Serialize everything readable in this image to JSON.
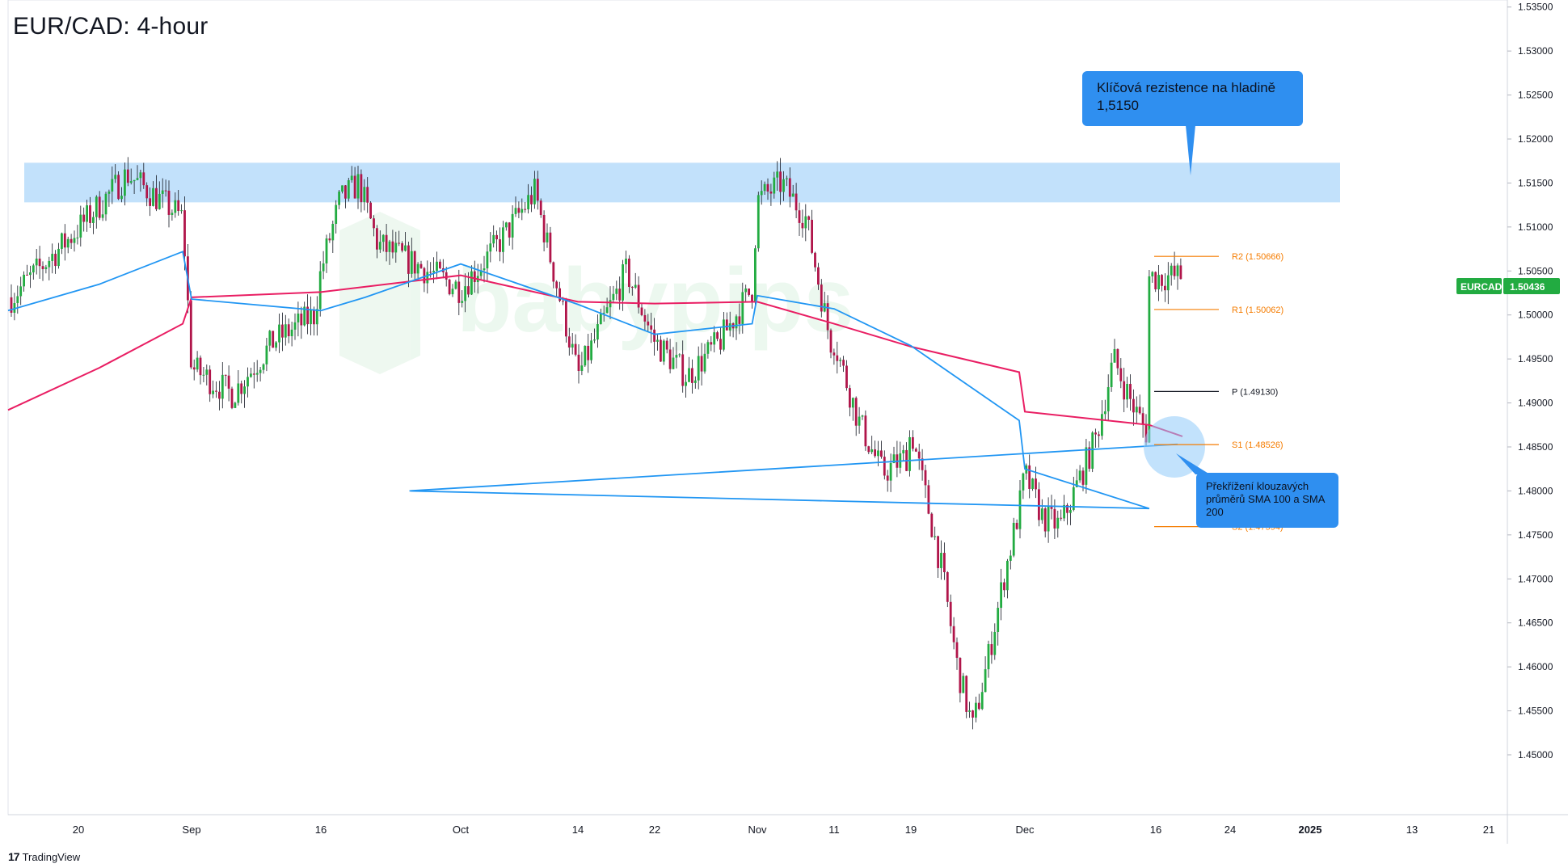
{
  "title": "EUR/CAD: 4-hour",
  "branding": "TradingView",
  "watermark": "babypips",
  "price_tag": {
    "symbol": "EURCAD",
    "value": "1.50436",
    "color": "#22ab41"
  },
  "callouts": {
    "resistance": "Klíčová rezistence na hladině 1,5150",
    "crossover": "Překřížení klouzavých průměrů SMA 100 a SMA 200"
  },
  "colors": {
    "bull": "#22ab41",
    "bear": "#b0154a",
    "sma100": "#2196f3",
    "sma200": "#e91e63",
    "zone": "#bbdefb",
    "pivot_orange": "#f57c00",
    "callout": "#2f8ff0"
  },
  "chart_data": {
    "type": "candlestick",
    "title": "EUR/CAD: 4-hour",
    "x_ticks": [
      "20",
      "Sep",
      "16",
      "Oct",
      "14",
      "22",
      "Nov",
      "11",
      "19",
      "Dec",
      "16",
      "24",
      "2025",
      "13",
      "21"
    ],
    "y_ticks": [
      "1.45000",
      "1.45500",
      "1.46000",
      "1.46500",
      "1.47000",
      "1.47500",
      "1.48000",
      "1.48500",
      "1.49000",
      "1.49500",
      "1.50000",
      "1.50500",
      "1.51000",
      "1.51500",
      "1.52000",
      "1.52500",
      "1.53000",
      "1.53500"
    ],
    "ylim": [
      1.4432,
      1.5358
    ],
    "resistance_zone": {
      "low": 1.5128,
      "high": 1.5173
    },
    "pivot_levels": [
      {
        "label": "R2 (1.50666)",
        "value": 1.50666,
        "color": "#f57c00"
      },
      {
        "label": "R1 (1.50062)",
        "value": 1.50062,
        "color": "#f57c00"
      },
      {
        "label": "P (1.49130)",
        "value": 1.4913,
        "color": "#131722"
      },
      {
        "label": "S1 (1.48526)",
        "value": 1.48526,
        "color": "#f57c00"
      },
      {
        "label": "S2 (1.47594)",
        "value": 1.47594,
        "color": "#f57c00"
      }
    ],
    "price_path": [
      [
        "20",
        1.502
      ],
      [
        "20",
        1.509
      ],
      [
        "20",
        1.516
      ],
      [
        "20",
        1.511
      ],
      [
        "Sep",
        1.494
      ],
      [
        "Sep",
        1.491
      ],
      [
        "Sep",
        1.497
      ],
      [
        "Sep",
        1.5
      ],
      [
        "16",
        1.505
      ],
      [
        "16",
        1.513
      ],
      [
        "16",
        1.515
      ],
      [
        "16",
        1.508
      ],
      [
        "Oct",
        1.503
      ],
      [
        "Oct",
        1.508
      ],
      [
        "Oct",
        1.514
      ],
      [
        "Oct",
        1.496
      ],
      [
        "14",
        1.493
      ],
      [
        "14",
        1.499
      ],
      [
        "14",
        1.505
      ],
      [
        "14",
        1.498
      ],
      [
        "22",
        1.497
      ],
      [
        "22",
        1.493
      ],
      [
        "22",
        1.497
      ],
      [
        "22",
        1.503
      ],
      [
        "Nov",
        1.513
      ],
      [
        "Nov",
        1.515
      ],
      [
        "Nov",
        1.511
      ],
      [
        "Nov",
        1.497
      ],
      [
        "11",
        1.497
      ],
      [
        "11",
        1.488
      ],
      [
        "11",
        1.482
      ],
      [
        "11",
        1.484
      ],
      [
        "19",
        1.487
      ],
      [
        "19",
        1.479
      ],
      [
        "19",
        1.471
      ],
      [
        "19",
        1.46
      ],
      [
        "19",
        1.453
      ],
      [
        "19",
        1.461
      ],
      [
        "19",
        1.47
      ],
      [
        "19",
        1.478
      ],
      [
        "Dec",
        1.482
      ],
      [
        "Dec",
        1.477
      ],
      [
        "Dec",
        1.476
      ],
      [
        "Dec",
        1.481
      ],
      [
        "Dec",
        1.486
      ],
      [
        "Dec",
        1.495
      ],
      [
        "Dec",
        1.49
      ],
      [
        "Dec",
        1.486
      ],
      [
        "16",
        1.493
      ],
      [
        "16",
        1.497
      ],
      [
        "16",
        1.502
      ],
      [
        "16",
        1.5044
      ]
    ],
    "series": [
      {
        "name": "SMA 100",
        "color": "#2196f3",
        "path": [
          [
            "20",
            1.5005
          ],
          [
            "20",
            1.5035
          ],
          [
            "20",
            1.5072
          ],
          [
            "Sep",
            1.5018
          ],
          [
            "16",
            1.5005
          ],
          [
            "16",
            1.502
          ],
          [
            "Oct",
            1.5058
          ],
          [
            "14",
            1.5012
          ],
          [
            "22",
            1.4978
          ],
          [
            "22",
            1.499
          ],
          [
            "Nov",
            1.5022
          ],
          [
            "11",
            1.5007
          ],
          [
            "19",
            1.4965
          ],
          [
            "19",
            1.488
          ],
          [
            "Dec",
            1.4825
          ],
          [
            "Dec",
            1.478
          ],
          [
            "16",
            1.48
          ],
          [
            "16",
            1.4853
          ]
        ]
      },
      {
        "name": "SMA 200",
        "color": "#e91e63",
        "path": [
          [
            "20",
            1.4892
          ],
          [
            "20",
            1.494
          ],
          [
            "20",
            1.499
          ],
          [
            "Sep",
            1.502
          ],
          [
            "16",
            1.5026
          ],
          [
            "Oct",
            1.5045
          ],
          [
            "14",
            1.5015
          ],
          [
            "22",
            1.5013
          ],
          [
            "Nov",
            1.5015
          ],
          [
            "11",
            1.499
          ],
          [
            "19",
            1.4964
          ],
          [
            "19",
            1.4935
          ],
          [
            "Dec",
            1.489
          ],
          [
            "Dec",
            1.4875
          ],
          [
            "16",
            1.4862
          ]
        ]
      }
    ]
  }
}
